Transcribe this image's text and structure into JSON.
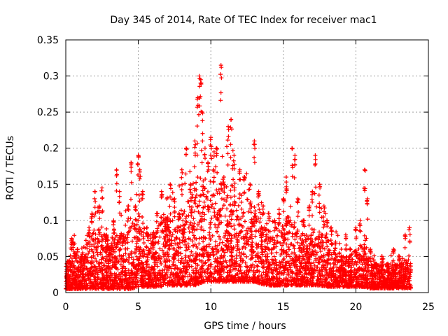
{
  "chart_data": {
    "type": "scatter",
    "title": "Day 345 of 2014, Rate Of TEC Index for receiver mac1",
    "xlabel": "GPS time / hours",
    "ylabel": "ROTI / TECUs",
    "xlim": [
      0,
      25
    ],
    "ylim": [
      0,
      0.35
    ],
    "xticks": [
      0,
      5,
      10,
      15,
      20,
      25
    ],
    "xtick_labels": [
      "0",
      "5",
      "10",
      "15",
      "20",
      "25"
    ],
    "yticks": [
      0,
      0.05,
      0.1,
      0.15,
      0.2,
      0.25,
      0.3,
      0.35
    ],
    "ytick_labels": [
      "0",
      "0.05",
      "0.1",
      "0.15",
      "0.2",
      "0.25",
      "0.3",
      "0.35"
    ],
    "grid": true,
    "marker": "+",
    "color": "#ff0000",
    "series": [
      {
        "name": "ROTI",
        "points": [
          [
            0.1,
            0.02
          ],
          [
            0.3,
            0.04
          ],
          [
            0.4,
            0.075
          ],
          [
            0.5,
            0.07
          ],
          [
            0.8,
            0.06
          ],
          [
            1.0,
            0.03
          ],
          [
            1.3,
            0.05
          ],
          [
            1.6,
            0.09
          ],
          [
            1.8,
            0.11
          ],
          [
            2.0,
            0.14
          ],
          [
            2.3,
            0.12
          ],
          [
            2.5,
            0.145
          ],
          [
            2.8,
            0.08
          ],
          [
            3.0,
            0.06
          ],
          [
            3.3,
            0.1
          ],
          [
            3.5,
            0.17
          ],
          [
            3.7,
            0.14
          ],
          [
            4.0,
            0.08
          ],
          [
            4.3,
            0.12
          ],
          [
            4.5,
            0.18
          ],
          [
            4.8,
            0.12
          ],
          [
            5.0,
            0.19
          ],
          [
            5.1,
            0.17
          ],
          [
            5.3,
            0.14
          ],
          [
            5.6,
            0.09
          ],
          [
            6.0,
            0.07
          ],
          [
            6.3,
            0.11
          ],
          [
            6.6,
            0.14
          ],
          [
            6.9,
            0.1
          ],
          [
            7.2,
            0.15
          ],
          [
            7.5,
            0.13
          ],
          [
            7.8,
            0.11
          ],
          [
            8.0,
            0.17
          ],
          [
            8.3,
            0.2
          ],
          [
            8.6,
            0.15
          ],
          [
            8.9,
            0.21
          ],
          [
            9.1,
            0.27
          ],
          [
            9.2,
            0.3
          ],
          [
            9.3,
            0.295
          ],
          [
            9.4,
            0.25
          ],
          [
            9.6,
            0.2
          ],
          [
            9.8,
            0.18
          ],
          [
            10.0,
            0.215
          ],
          [
            10.2,
            0.17
          ],
          [
            10.4,
            0.2
          ],
          [
            10.7,
            0.315
          ],
          [
            10.9,
            0.16
          ],
          [
            11.2,
            0.23
          ],
          [
            11.4,
            0.24
          ],
          [
            11.6,
            0.19
          ],
          [
            12.0,
            0.17
          ],
          [
            12.3,
            0.16
          ],
          [
            12.7,
            0.15
          ],
          [
            13.0,
            0.21
          ],
          [
            13.3,
            0.14
          ],
          [
            13.6,
            0.12
          ],
          [
            14.0,
            0.11
          ],
          [
            14.4,
            0.1
          ],
          [
            14.7,
            0.11
          ],
          [
            15.0,
            0.13
          ],
          [
            15.2,
            0.16
          ],
          [
            15.6,
            0.2
          ],
          [
            15.8,
            0.19
          ],
          [
            16.0,
            0.13
          ],
          [
            16.4,
            0.1
          ],
          [
            16.8,
            0.12
          ],
          [
            17.0,
            0.14
          ],
          [
            17.2,
            0.19
          ],
          [
            17.5,
            0.15
          ],
          [
            17.8,
            0.12
          ],
          [
            18.0,
            0.1
          ],
          [
            18.3,
            0.09
          ],
          [
            18.6,
            0.07
          ],
          [
            19.0,
            0.05
          ],
          [
            19.3,
            0.08
          ],
          [
            19.6,
            0.06
          ],
          [
            20.0,
            0.09
          ],
          [
            20.3,
            0.1
          ],
          [
            20.6,
            0.17
          ],
          [
            20.8,
            0.13
          ],
          [
            21.0,
            0.06
          ],
          [
            21.4,
            0.04
          ],
          [
            21.8,
            0.05
          ],
          [
            22.2,
            0.04
          ],
          [
            22.6,
            0.06
          ],
          [
            23.0,
            0.05
          ],
          [
            23.4,
            0.08
          ],
          [
            23.7,
            0.09
          ]
        ]
      }
    ],
    "envelope": {
      "x": [
        0,
        0.5,
        1,
        1.5,
        2,
        2.5,
        3,
        3.5,
        4,
        4.5,
        5,
        5.5,
        6,
        6.5,
        7,
        7.5,
        8,
        8.5,
        9,
        9.5,
        10,
        10.5,
        11,
        11.5,
        12,
        12.5,
        13,
        13.5,
        14,
        14.5,
        15,
        15.5,
        16,
        16.5,
        17,
        17.5,
        18,
        18.5,
        19,
        19.5,
        20,
        20.5,
        21,
        21.5,
        22,
        22.5,
        23,
        23.5,
        23.8
      ],
      "y_high": [
        0.04,
        0.06,
        0.05,
        0.07,
        0.09,
        0.09,
        0.07,
        0.09,
        0.08,
        0.1,
        0.11,
        0.09,
        0.08,
        0.1,
        0.11,
        0.1,
        0.12,
        0.13,
        0.15,
        0.15,
        0.14,
        0.15,
        0.16,
        0.15,
        0.14,
        0.13,
        0.12,
        0.1,
        0.09,
        0.09,
        0.1,
        0.11,
        0.09,
        0.08,
        0.09,
        0.09,
        0.08,
        0.07,
        0.05,
        0.05,
        0.06,
        0.07,
        0.05,
        0.04,
        0.04,
        0.04,
        0.04,
        0.05,
        0.04
      ],
      "y_low": [
        0.005,
        0.005,
        0.005,
        0.005,
        0.005,
        0.005,
        0.005,
        0.005,
        0.005,
        0.005,
        0.008,
        0.008,
        0.008,
        0.008,
        0.01,
        0.01,
        0.01,
        0.01,
        0.01,
        0.015,
        0.015,
        0.015,
        0.015,
        0.015,
        0.015,
        0.015,
        0.015,
        0.012,
        0.01,
        0.01,
        0.01,
        0.01,
        0.01,
        0.01,
        0.01,
        0.01,
        0.008,
        0.008,
        0.008,
        0.008,
        0.008,
        0.008,
        0.006,
        0.006,
        0.006,
        0.006,
        0.006,
        0.006,
        0.006
      ]
    }
  }
}
